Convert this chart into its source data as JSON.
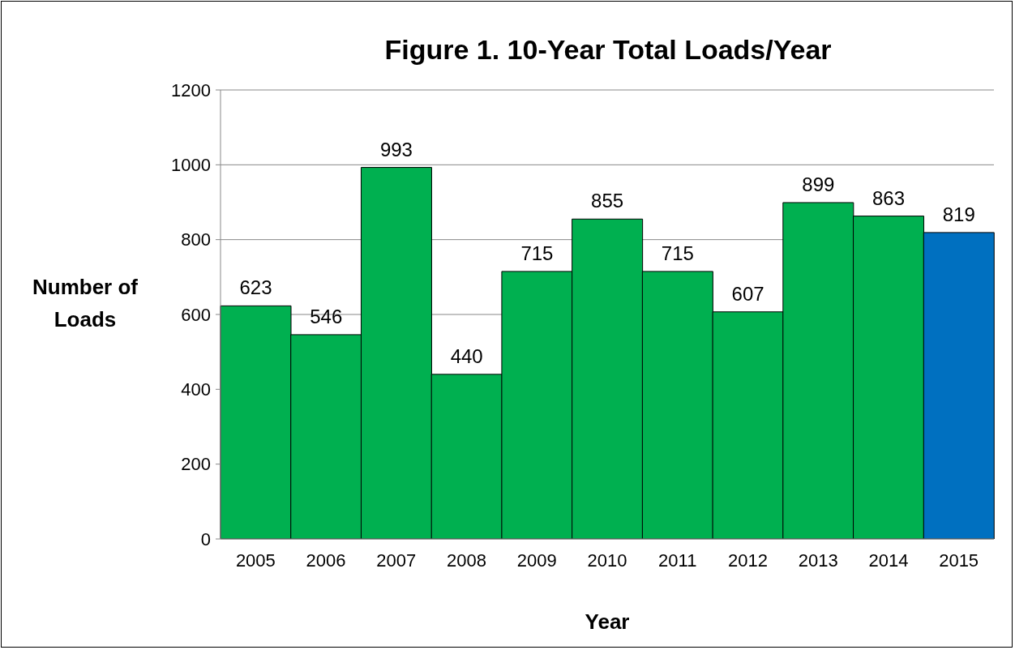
{
  "chart_data": {
    "type": "bar",
    "title": "Figure 1.  10-Year Total Loads/Year",
    "xlabel": "Year",
    "ylabel": "Number of Loads",
    "categories": [
      "2005",
      "2006",
      "2007",
      "2008",
      "2009",
      "2010",
      "2011",
      "2012",
      "2013",
      "2014",
      "2015"
    ],
    "values": [
      623,
      546,
      993,
      440,
      715,
      855,
      715,
      607,
      899,
      863,
      819
    ],
    "colors": [
      "#00b050",
      "#00b050",
      "#00b050",
      "#00b050",
      "#00b050",
      "#00b050",
      "#00b050",
      "#00b050",
      "#00b050",
      "#00b050",
      "#0070c0"
    ],
    "ylim": [
      0,
      1200
    ],
    "yticks": [
      0,
      200,
      400,
      600,
      800,
      1000,
      1200
    ],
    "grid": "y",
    "data_labels": true
  }
}
